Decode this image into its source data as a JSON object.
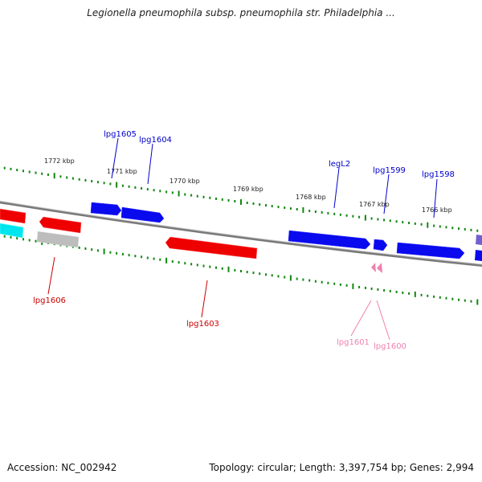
{
  "title": "Legionella pneumophila subsp. pneumophila str. Philadelphia ...",
  "footer": {
    "accession": "Accession: NC_002942",
    "summary": "Topology: circular; Length: 3,397,754 bp; Genes: 2,994"
  },
  "colors": {
    "forward_gene": "#0000ee",
    "reverse_gene": "#ee0000",
    "rna_gene": "#f080b0",
    "other_gene": "#bbbbbb",
    "cyan_gene": "#00e5ee",
    "tick": "#118811",
    "backbone": "#808080"
  },
  "scale_labels": [
    "1772 kbp",
    "1771 kbp",
    "1770 kbp",
    "1769 kbp",
    "1768 kbp",
    "1767 kbp",
    "1766 kbp"
  ],
  "gene_labels": {
    "top": [
      "lpg1605",
      "lpg1604",
      "legL2",
      "lpg1599",
      "lpg1598"
    ],
    "bottom": [
      "lpg1606",
      "lpg1603",
      "lpg1601",
      "lpg1600"
    ]
  }
}
